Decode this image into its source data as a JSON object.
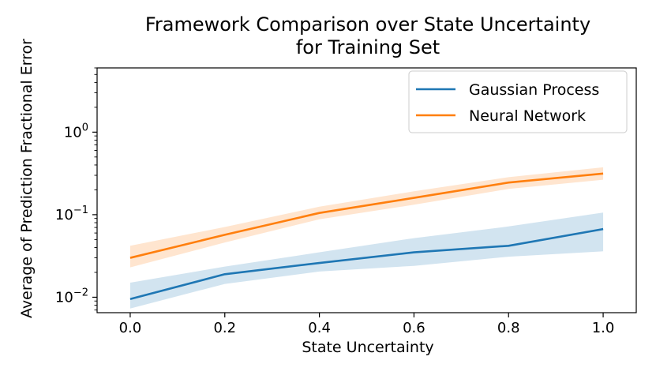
{
  "chart_data": {
    "type": "line",
    "title": "Framework Comparison over State Uncertainty",
    "subtitle": "for Training Set",
    "xlabel": "State Uncertainty",
    "ylabel": "Average of Prediction Fractional Error",
    "xlim": [
      -0.07,
      1.07
    ],
    "ylim": [
      0.0065,
      6.0
    ],
    "yscale": "log",
    "x_ticks": [
      0.0,
      0.2,
      0.4,
      0.6,
      0.8,
      1.0
    ],
    "x_tick_labels": [
      "0.0",
      "0.2",
      "0.4",
      "0.6",
      "0.8",
      "1.0"
    ],
    "y_ticks": [
      {
        "value": 0.01,
        "base": "10",
        "exp": "−2"
      },
      {
        "value": 0.1,
        "base": "10",
        "exp": "−1"
      },
      {
        "value": 1,
        "base": "10",
        "exp": "0"
      }
    ],
    "x": [
      0.0,
      0.2,
      0.4,
      0.6,
      0.8,
      1.0
    ],
    "series": [
      {
        "name": "Gaussian Process",
        "color": "#1f77b4",
        "values": [
          0.0095,
          0.019,
          0.026,
          0.035,
          0.042,
          0.067
        ],
        "lower": [
          0.0073,
          0.0145,
          0.0205,
          0.024,
          0.031,
          0.036
        ],
        "upper": [
          0.015,
          0.0235,
          0.035,
          0.052,
          0.072,
          0.106
        ]
      },
      {
        "name": "Neural Network",
        "color": "#ff7f0e",
        "values": [
          0.03,
          0.057,
          0.105,
          0.16,
          0.245,
          0.315
        ],
        "lower": [
          0.023,
          0.046,
          0.088,
          0.132,
          0.205,
          0.265
        ],
        "upper": [
          0.042,
          0.071,
          0.125,
          0.192,
          0.285,
          0.375
        ]
      }
    ],
    "legend": {
      "position": "top-right"
    },
    "grid": false
  }
}
